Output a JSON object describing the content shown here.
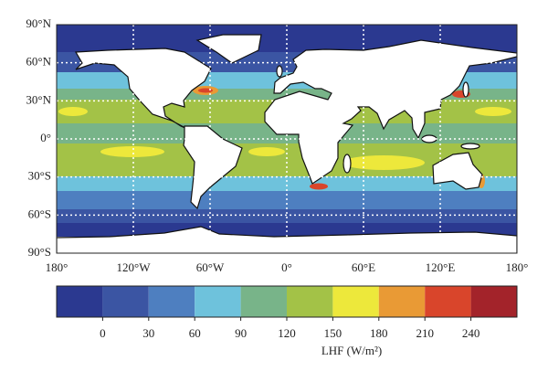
{
  "map": {
    "lat_labels": [
      "90°N",
      "60°N",
      "30°N",
      "0°",
      "30°S",
      "60°S",
      "90°S"
    ],
    "lon_labels": [
      "180°",
      "120°W",
      "60°W",
      "0°",
      "60°E",
      "120°E",
      "180°"
    ]
  },
  "colorbar": {
    "colors": [
      "#2b3990",
      "#3b55a3",
      "#4e7fc0",
      "#6ec2dc",
      "#78b489",
      "#a3c247",
      "#ede83b",
      "#e99a35",
      "#d9452b",
      "#a3232a"
    ],
    "ticks": [
      0,
      30,
      60,
      90,
      120,
      150,
      180,
      210,
      240
    ],
    "label": "LHF (W/m²)"
  }
}
